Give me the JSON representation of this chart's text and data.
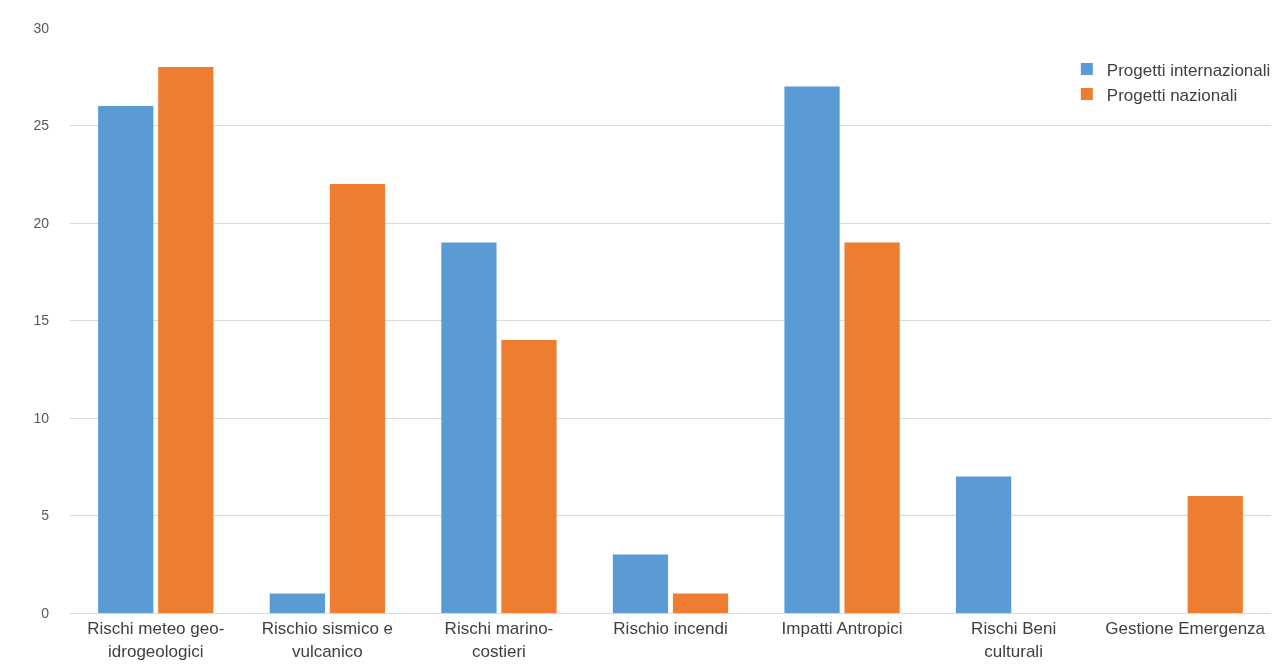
{
  "chart_data": {
    "type": "bar",
    "categories": [
      "Rischi meteo geo-idrogeologici",
      "Rischio sismico e vulcanico",
      "Rischi marino-costieri",
      "Rischio incendi",
      "Impatti Antropici",
      "Rischi Beni culturali",
      "Gestione Emergenza"
    ],
    "series": [
      {
        "name": "Progetti internazionali",
        "color": "#5b9bd5",
        "values": [
          26,
          1,
          19,
          3,
          27,
          7,
          0
        ]
      },
      {
        "name": "Progetti nazionali",
        "color": "#ed7d31",
        "values": [
          28,
          22,
          14,
          1,
          19,
          0,
          6
        ]
      }
    ],
    "ylim": [
      0,
      30
    ],
    "yticks": [
      0,
      5,
      10,
      15,
      20,
      25,
      30
    ],
    "grid": "y",
    "legend": "top right"
  }
}
